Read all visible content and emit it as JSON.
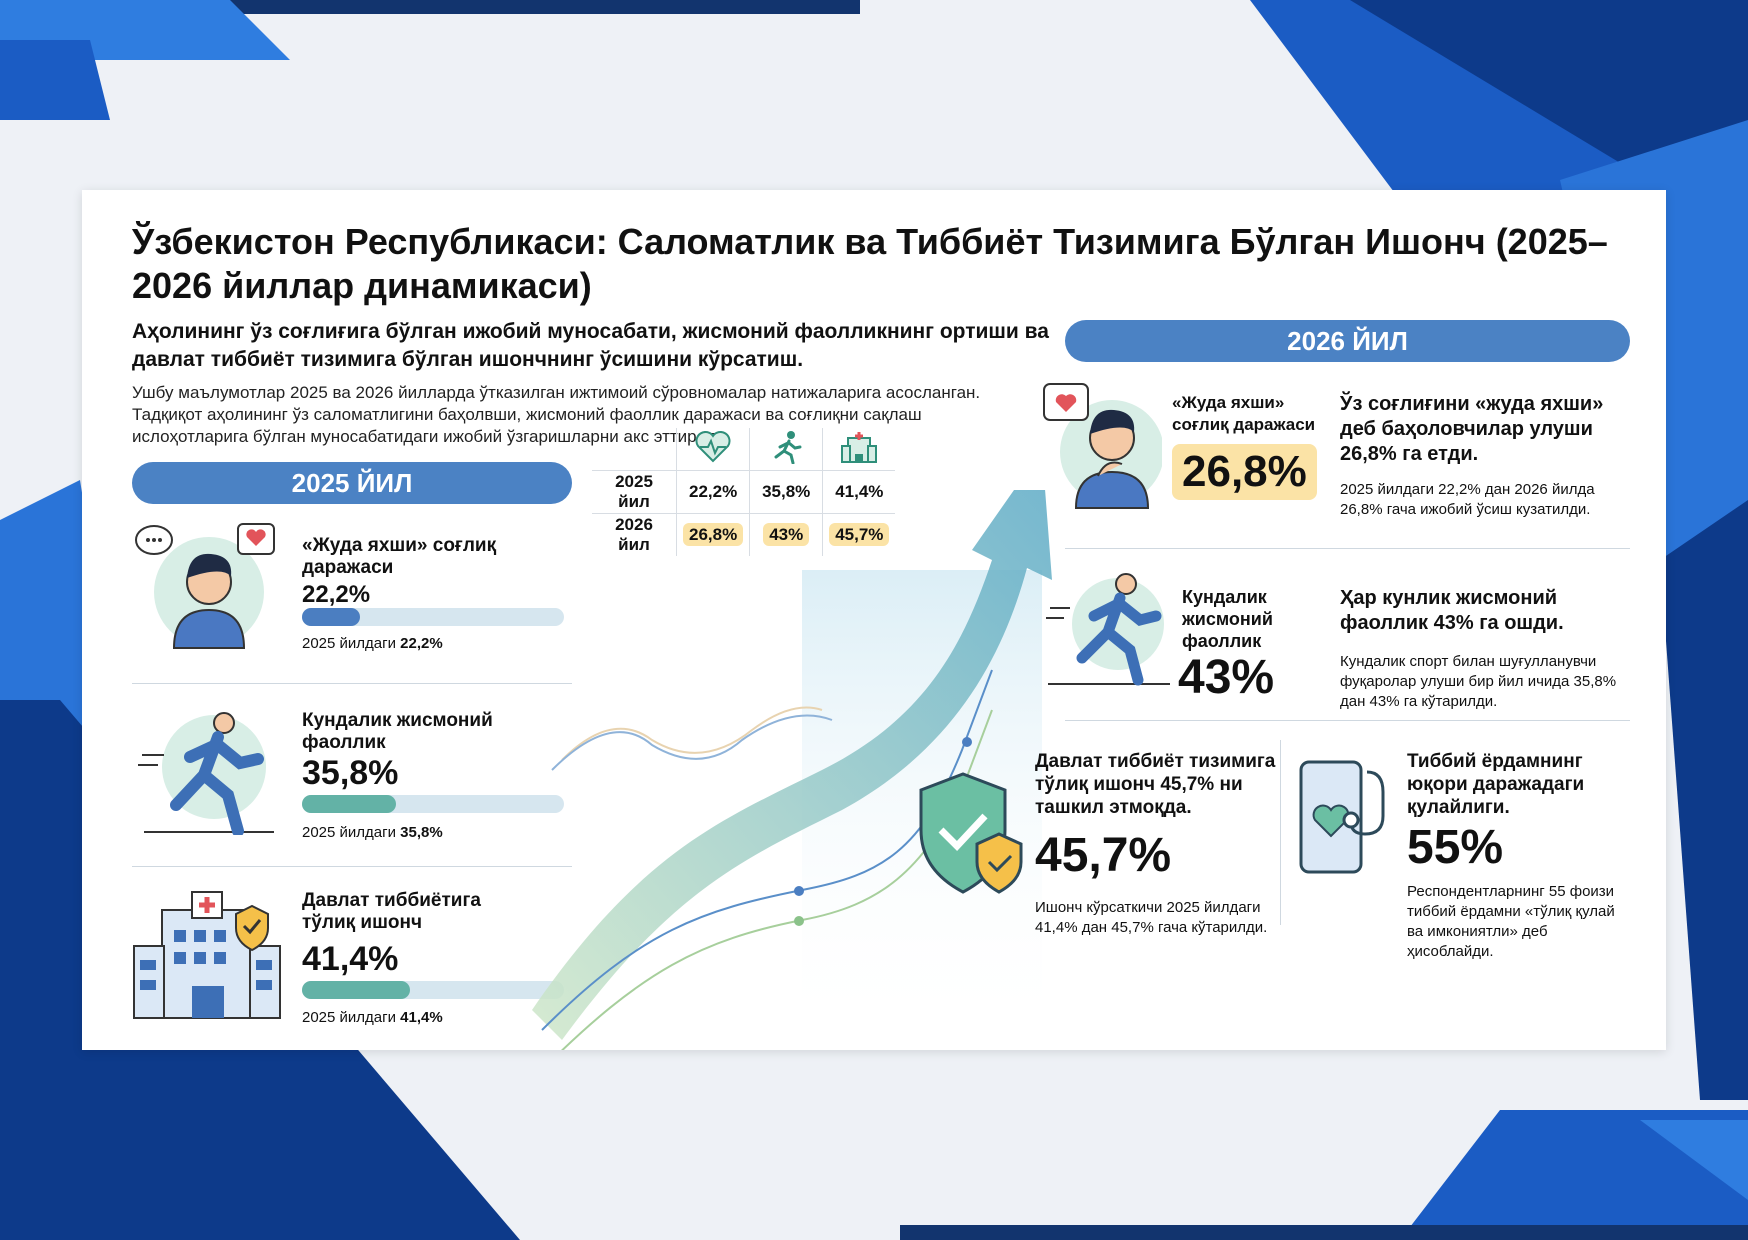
{
  "colors": {
    "primary": "#4b82c4",
    "teal": "#63b2a6",
    "highlight": "#fbe3a6",
    "dark_blue": "#0b2e6b"
  },
  "title": "Ўзбекистон Республикаси: Саломатлик ва Тиббиёт Тизимига Бўлган Ишонч (2025–2026 йиллар динамикаси)",
  "subtitle": "Аҳолининг ўз соғлиғига бўлган ижобий муносабати, жисмоний фаолликнинг ортиши ва давлат тиббиёт тизимига бўлган ишончнинг ўсишини кўрсатиш.",
  "description": "Ушбу маълумотлар 2025 ва 2026 йилларда ўтказилган ижтимоий сўровномалар натижаларига асосланган. Тадқиқот аҳолининг ўз саломатлигини баҳолвши, жисмоний фаоллик даражаси ва соғлиқни сақлаш ислоҳотларига бўлган муносабатидаги ижобий ўзгаришларни акс эттиради.",
  "y2025": {
    "header": "2025 ЙИЛ",
    "items": [
      {
        "label": "«Жуда яхши» соғлиқ даражаси",
        "value": "22,2%",
        "fraction": 0.222,
        "note_prefix": "2025 йилдаги",
        "note_value": "22,2%",
        "icon": "person-icon"
      },
      {
        "label": "Кундалик жисмоний фаоллик",
        "value": "35,8%",
        "fraction": 0.358,
        "note_prefix": "2025 йилдаги",
        "note_value": "35,8%",
        "icon": "runner-icon"
      },
      {
        "label": "Давлат тиббиётига тўлиқ ишонч",
        "value": "41,4%",
        "fraction": 0.414,
        "note_prefix": "2025 йилдаги",
        "note_value": "41,4%",
        "icon": "hospital-icon"
      }
    ]
  },
  "table": {
    "rows": [
      {
        "year": "2025 йил",
        "values": [
          "22,2%",
          "35,8%",
          "41,4%"
        ]
      },
      {
        "year": "2026 йил",
        "values": [
          "26,8%",
          "43%",
          "45,7%"
        ]
      }
    ],
    "icons": [
      "heart-pulse-icon",
      "runner-icon",
      "hospital-icon"
    ]
  },
  "y2026": {
    "header": "2026 ЙИЛ",
    "health": {
      "label": "«Жуда яхши» соғлиқ даражаси",
      "value": "26,8%",
      "headline": "Ўз соғлиғини «жуда яхши» деб баҳоловчилар улуши 26,8% га етди.",
      "note": "2025 йилдаги 22,2% дан 2026 йилда 26,8% гача ижобий ўсиш кузатилди."
    },
    "activity": {
      "label": "Кундалик жисмоний фаоллик",
      "value": "43%",
      "headline": "Ҳар кунлик жисмоний фаоллик 43% га ошди.",
      "note": "Кундалик спорт билан шуғулланувчи фуқаролар улуши бир йил ичида 35,8% дан 43% га кўтарилди."
    },
    "trust": {
      "headline": "Давлат тиббиёт тизимига тўлиқ ишонч 45,7% ни ташкил этмоқда.",
      "value": "45,7%",
      "note": "Ишонч кўрсаткичи 2025 йилдаги 41,4% дан 45,7% гача кўтарилди."
    },
    "access": {
      "headline": "Тиббий ёрдамнинг юқори даражадаги қулайлиги.",
      "value": "55%",
      "note": "Респондентларнинг 55 фоизи тиббий ёрдамни «тўлиқ қулай ва имкониятли» деб ҳисоблайди."
    }
  }
}
